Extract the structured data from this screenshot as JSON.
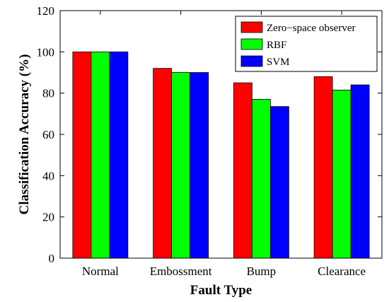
{
  "chart_data": {
    "type": "bar",
    "title": "",
    "xlabel": "Fault Type",
    "ylabel": "Classification Accuracy (%)",
    "ylim": [
      0,
      120
    ],
    "yticks": [
      0,
      20,
      40,
      60,
      80,
      100,
      120
    ],
    "categories": [
      "Normal",
      "Embossment",
      "Bump",
      "Clearance"
    ],
    "series": [
      {
        "name": "Zero−space observer",
        "color": "#ff0000",
        "values": [
          100,
          92,
          85,
          88
        ]
      },
      {
        "name": "RBF",
        "color": "#00ff00",
        "values": [
          100,
          90,
          77,
          81.5
        ]
      },
      {
        "name": "SVM",
        "color": "#0000ff",
        "values": [
          100,
          90,
          73.5,
          84
        ]
      }
    ],
    "legend_position": "top-right",
    "grid": false
  }
}
